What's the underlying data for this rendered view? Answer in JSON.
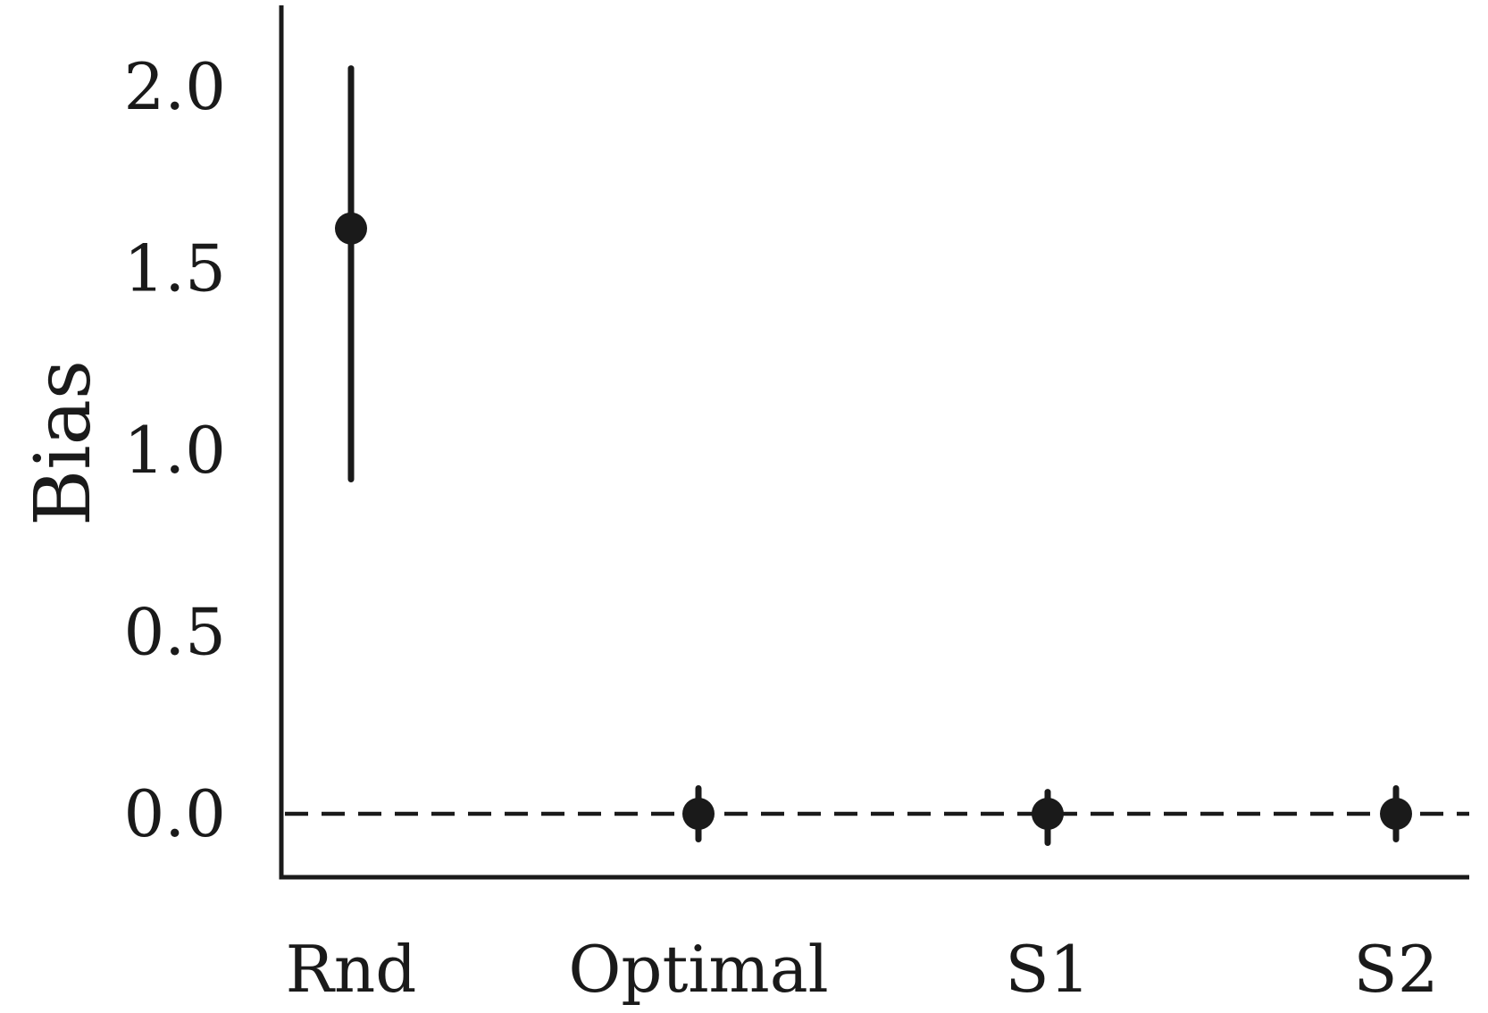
{
  "chart_data": {
    "type": "scatter",
    "title": "",
    "xlabel": "",
    "ylabel": "Bias",
    "categories": [
      "Rnd",
      "Optimal",
      "S1",
      "S2"
    ],
    "ylim": [
      -0.17,
      2.2
    ],
    "yticks": [
      0.0,
      0.5,
      1.0,
      1.5,
      2.0
    ],
    "ytick_labels": [
      "0.0",
      "0.5",
      "1.0",
      "1.5",
      "2.0"
    ],
    "reference_line": {
      "y": 0.0,
      "style": "dashed"
    },
    "series": [
      {
        "values": [
          1.61,
          0.0,
          0.0,
          0.0
        ],
        "error_low": [
          0.92,
          -0.07,
          -0.08,
          -0.07
        ],
        "error_high": [
          2.05,
          0.07,
          0.06,
          0.07
        ]
      }
    ],
    "grid": false,
    "legend": "none",
    "color": "#1a1a1a"
  }
}
